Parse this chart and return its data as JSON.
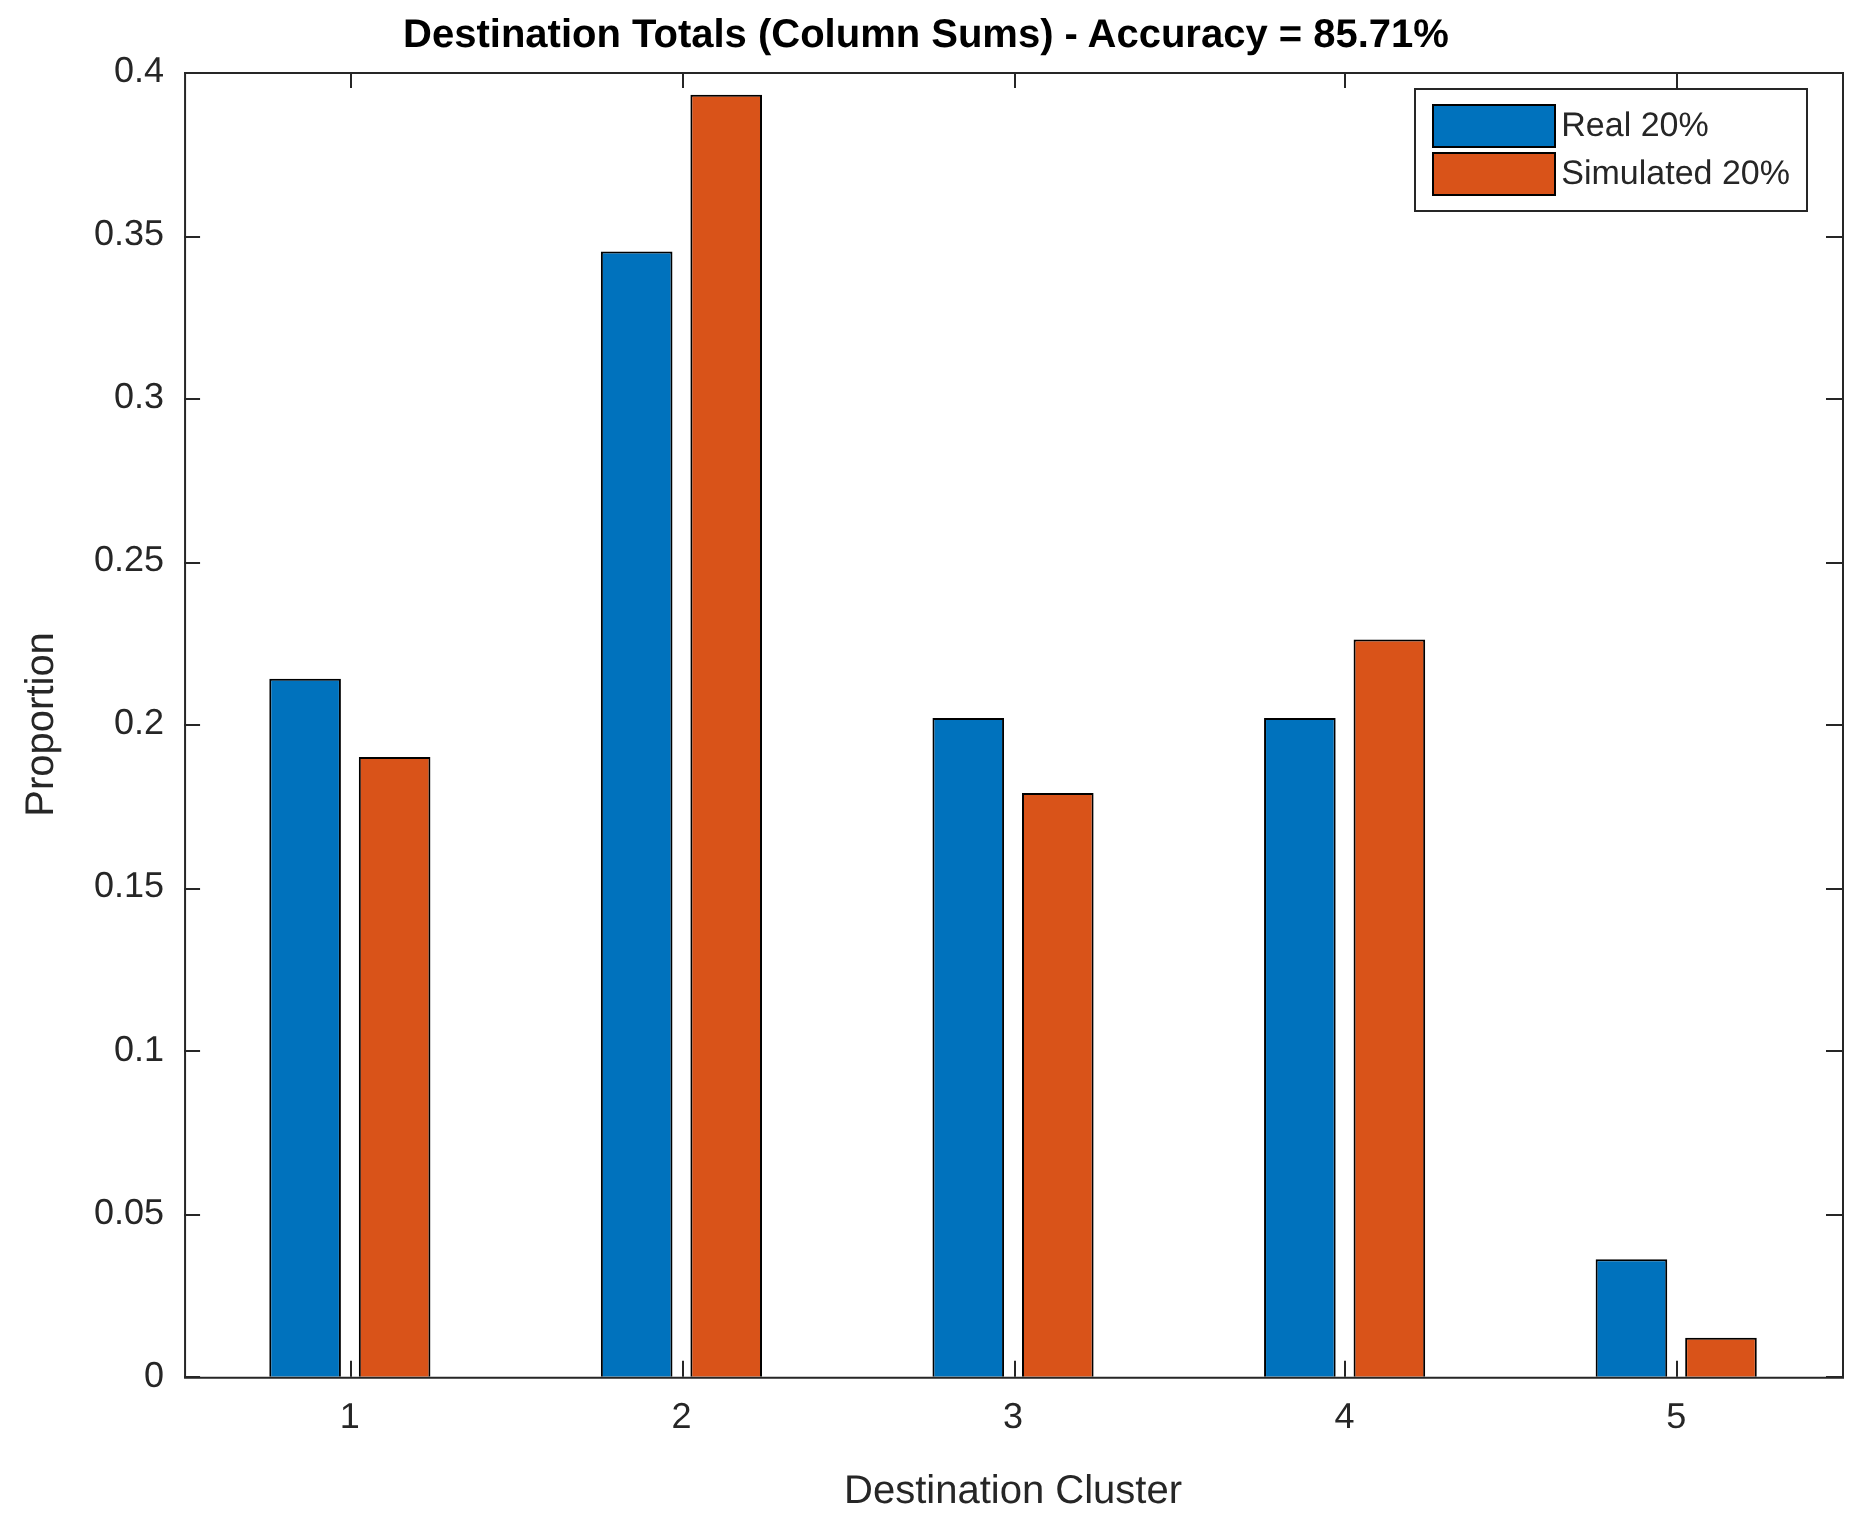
{
  "chart_data": {
    "type": "bar",
    "title": "Destination Totals (Column Sums) - Accuracy = 85.71%",
    "xlabel": "Destination Cluster",
    "ylabel": "Proportion",
    "categories": [
      "1",
      "2",
      "3",
      "4",
      "5"
    ],
    "series": [
      {
        "name": "Real 20%",
        "color": "#0072bd",
        "values": [
          0.214,
          0.345,
          0.202,
          0.202,
          0.036
        ]
      },
      {
        "name": "Simulated 20%",
        "color": "#d95319",
        "values": [
          0.19,
          0.393,
          0.179,
          0.226,
          0.012
        ]
      }
    ],
    "ylim": [
      0,
      0.4
    ],
    "yticks": [
      0,
      0.05,
      0.1,
      0.15,
      0.2,
      0.25,
      0.3,
      0.35,
      0.4
    ],
    "grid": false,
    "legend": "top right"
  }
}
